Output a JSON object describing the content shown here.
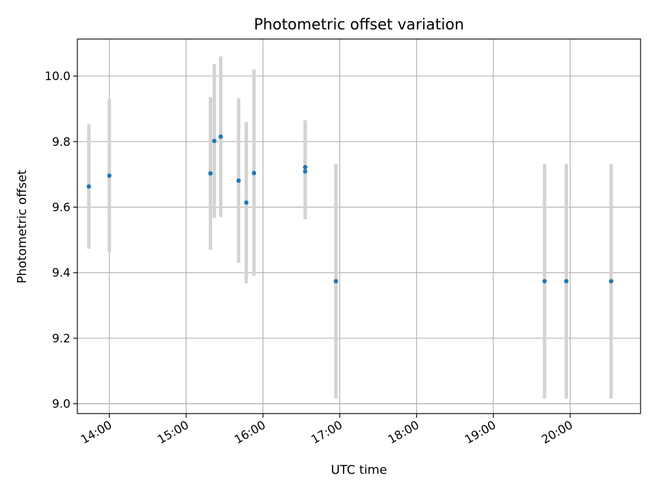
{
  "chart_data": {
    "type": "scatter",
    "title": "Photometric offset variation",
    "xlabel": "UTC time",
    "ylabel": "Photometric offset",
    "xlim": [
      "13:35",
      "20:55"
    ],
    "ylim": [
      8.97,
      10.113
    ],
    "x_ticks": [
      "14:00",
      "15:00",
      "16:00",
      "17:00",
      "18:00",
      "19:00",
      "20:00"
    ],
    "y_ticks": [
      "9.0",
      "9.2",
      "9.4",
      "9.6",
      "9.8",
      "10.0"
    ],
    "grid": true,
    "marker_color": "#1f77b4",
    "errorbar_color": "#d3d3d3",
    "points": [
      {
        "x": "13:44",
        "y": 9.663,
        "yerr_low": 9.473,
        "yerr_high": 9.853
      },
      {
        "x": "14:00",
        "y": 9.696,
        "yerr_low": 9.462,
        "yerr_high": 9.93
      },
      {
        "x": "15:19",
        "y": 9.703,
        "yerr_low": 9.47,
        "yerr_high": 9.936
      },
      {
        "x": "15:22",
        "y": 9.802,
        "yerr_low": 9.567,
        "yerr_high": 10.037
      },
      {
        "x": "15:27",
        "y": 9.815,
        "yerr_low": 9.57,
        "yerr_high": 10.06
      },
      {
        "x": "15:41",
        "y": 9.681,
        "yerr_low": 9.43,
        "yerr_high": 9.932
      },
      {
        "x": "15:47",
        "y": 9.614,
        "yerr_low": 9.368,
        "yerr_high": 9.86
      },
      {
        "x": "15:53",
        "y": 9.704,
        "yerr_low": 9.39,
        "yerr_high": 10.02
      },
      {
        "x": "16:33",
        "y": 9.722,
        "yerr_low": 9.58,
        "yerr_high": 9.865
      },
      {
        "x": "16:33",
        "y": 9.709,
        "yerr_low": 9.563,
        "yerr_high": 9.855
      },
      {
        "x": "16:57",
        "y": 9.374,
        "yerr_low": 9.016,
        "yerr_high": 9.732
      },
      {
        "x": "19:40",
        "y": 9.374,
        "yerr_low": 9.016,
        "yerr_high": 9.732
      },
      {
        "x": "19:57",
        "y": 9.374,
        "yerr_low": 9.016,
        "yerr_high": 9.732
      },
      {
        "x": "20:32",
        "y": 9.374,
        "yerr_low": 9.016,
        "yerr_high": 9.732
      }
    ]
  }
}
